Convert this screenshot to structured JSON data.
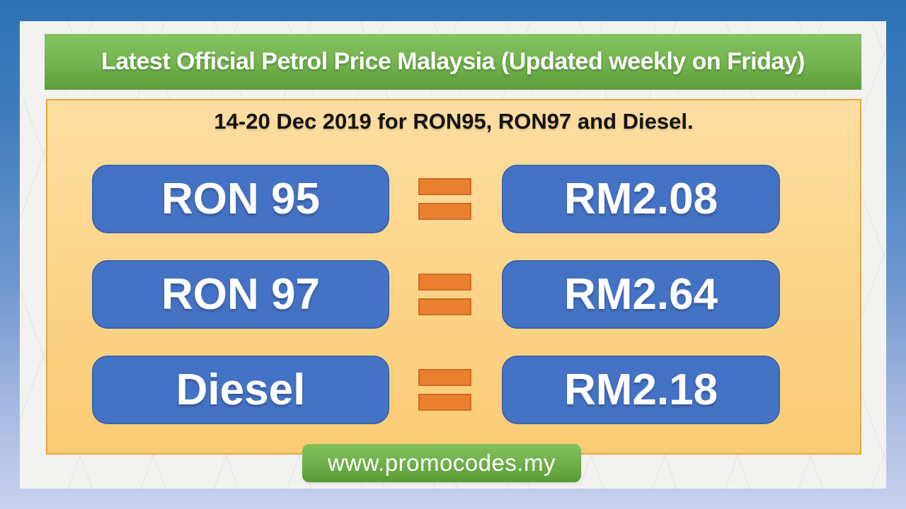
{
  "header": {
    "title": "Latest Official Petrol Price Malaysia (Updated weekly on Friday)"
  },
  "panel": {
    "subtitle": "14-20 Dec 2019 for RON95, RON97 and Diesel."
  },
  "rows": [
    {
      "fuel": "RON 95",
      "price": "RM2.08"
    },
    {
      "fuel": "RON 97",
      "price": "RM2.64"
    },
    {
      "fuel": "Diesel",
      "price": "RM2.18"
    }
  ],
  "footer": {
    "url": "www.promocodes.my"
  },
  "colors": {
    "frame_blue_top": "#2e73b4",
    "frame_blue_bottom": "#c8d2ee",
    "card_background": "#f2f2f1",
    "banner_green": "#6aac45",
    "panel_orange": "#fcd68c",
    "panel_border": "#e9a63c",
    "pill_blue": "#4472c4",
    "equals_orange": "#e8802f",
    "footer_green": "#6fae4a",
    "text_white": "#ffffff",
    "text_black": "#141414"
  }
}
